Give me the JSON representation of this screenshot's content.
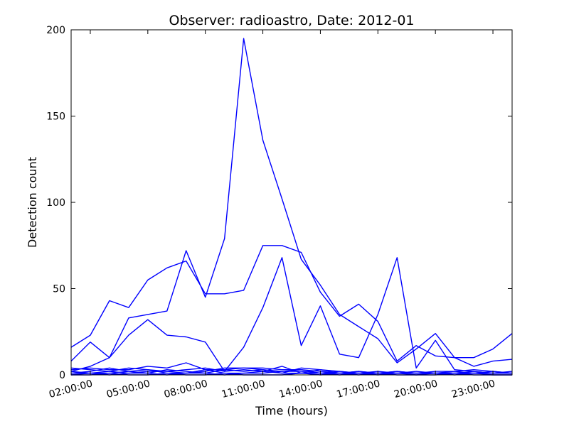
{
  "chart_data": {
    "type": "line",
    "title": "Observer: radioastro, Date: 2012-01",
    "xlabel": "Time (hours)",
    "ylabel": "Detection count",
    "x": [
      1,
      2,
      3,
      4,
      5,
      6,
      7,
      8,
      9,
      10,
      11,
      12,
      13,
      14,
      15,
      16,
      17,
      18,
      19,
      20,
      21,
      22,
      23,
      24
    ],
    "xlim": [
      1,
      24
    ],
    "ylim": [
      0,
      200
    ],
    "xticks": [
      {
        "value": 2,
        "label": "02:00:00"
      },
      {
        "value": 5,
        "label": "05:00:00"
      },
      {
        "value": 8,
        "label": "08:00:00"
      },
      {
        "value": 11,
        "label": "11:00:00"
      },
      {
        "value": 14,
        "label": "14:00:00"
      },
      {
        "value": 17,
        "label": "17:00:00"
      },
      {
        "value": 20,
        "label": "20:00:00"
      },
      {
        "value": 23,
        "label": "23:00:00"
      }
    ],
    "yticks": [
      {
        "value": 0,
        "label": "0"
      },
      {
        "value": 50,
        "label": "50"
      },
      {
        "value": 100,
        "label": "100"
      },
      {
        "value": 150,
        "label": "150"
      },
      {
        "value": 200,
        "label": "200"
      }
    ],
    "grid": false,
    "color": "#0000ff",
    "series": [
      {
        "values": [
          2,
          5,
          10,
          33,
          35,
          37,
          72,
          45,
          79,
          195,
          136,
          102,
          67,
          52,
          35,
          28,
          21,
          7,
          15,
          24,
          10,
          5,
          8,
          9
        ]
      },
      {
        "values": [
          16,
          23,
          43,
          39,
          55,
          62,
          66,
          47,
          47,
          49,
          75,
          75,
          71,
          48,
          34,
          41,
          31,
          8,
          17,
          11,
          10,
          10,
          15,
          24
        ]
      },
      {
        "values": [
          8,
          19,
          10,
          23,
          32,
          23,
          22,
          19,
          2,
          16,
          39,
          68,
          17,
          40,
          12,
          10,
          35,
          68,
          4,
          20,
          3,
          2,
          1,
          1
        ]
      },
      {
        "values": [
          3,
          4,
          3,
          3,
          5,
          4,
          7,
          3,
          3,
          4,
          4,
          3,
          3,
          2,
          1,
          2,
          1,
          2,
          1,
          2,
          2,
          1,
          1,
          1
        ]
      },
      {
        "values": [
          4,
          3,
          2,
          4,
          3,
          2,
          3,
          4,
          2,
          3,
          2,
          5,
          1,
          3,
          2,
          1,
          2,
          1,
          1,
          1,
          2,
          3,
          2,
          1
        ]
      },
      {
        "values": [
          1,
          2,
          4,
          2,
          1,
          3,
          2,
          1,
          3,
          2,
          3,
          1,
          4,
          3,
          1,
          2,
          1,
          1,
          2,
          1,
          1,
          2,
          1,
          2
        ]
      },
      {
        "values": [
          2,
          1,
          1,
          2,
          3,
          1,
          1,
          2,
          4,
          4,
          3,
          2,
          3,
          1,
          2,
          1,
          1,
          1,
          1,
          1,
          1,
          1,
          1,
          1
        ]
      },
      {
        "values": [
          1,
          1,
          2,
          1,
          2,
          2,
          1,
          3,
          1,
          1,
          1,
          2,
          2,
          1,
          1,
          1,
          1,
          2,
          1,
          1,
          1,
          1,
          2,
          1
        ]
      },
      {
        "values": [
          0,
          1,
          0,
          1,
          1,
          0,
          1,
          1,
          0,
          1,
          2,
          1,
          1,
          1,
          0,
          1,
          0,
          1,
          0,
          1,
          0,
          1,
          0,
          0
        ]
      },
      {
        "values": [
          0,
          0,
          1,
          0,
          0,
          1,
          0,
          0,
          1,
          0,
          0,
          0,
          1,
          0,
          1,
          0,
          1,
          0,
          0,
          0,
          1,
          0,
          0,
          0
        ]
      }
    ]
  }
}
